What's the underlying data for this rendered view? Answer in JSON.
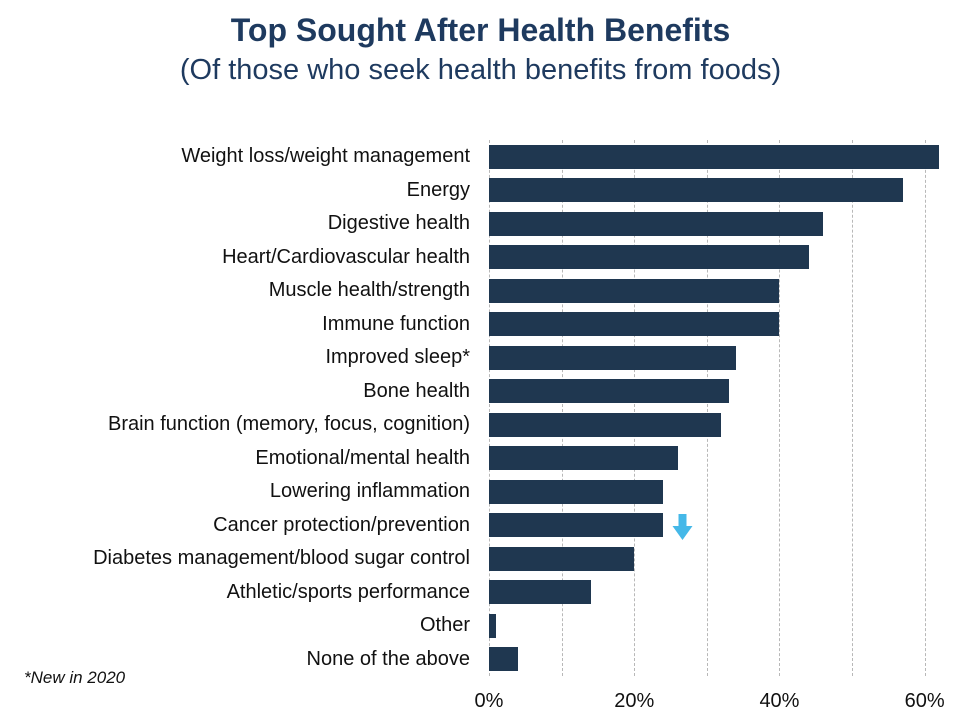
{
  "title": "Top Sought After Health Benefits",
  "subtitle": "(Of those who seek health benefits from foods)",
  "footnote": "*New in 2020",
  "colors": {
    "bar": "#1f3750",
    "heading": "#1e3a5f",
    "arrow": "#45b8e8",
    "gridline": "#b8b8b8",
    "text": "#111111"
  },
  "chart_data": {
    "type": "bar",
    "orientation": "horizontal",
    "title": "Top Sought After Health Benefits",
    "subtitle": "(Of those who seek health benefits from foods)",
    "categories": [
      "Weight loss/weight management",
      "Energy",
      "Digestive health",
      "Heart/Cardiovascular health",
      "Muscle health/strength",
      "Immune function",
      "Improved sleep*",
      "Bone health",
      "Brain function (memory, focus, cognition)",
      "Emotional/mental health",
      "Lowering inflammation",
      "Cancer protection/prevention",
      "Diabetes management/blood sugar control",
      "Athletic/sports performance",
      "Other",
      "None of the above"
    ],
    "values": [
      62,
      57,
      46,
      44,
      40,
      40,
      34,
      33,
      32,
      26,
      24,
      24,
      20,
      14,
      1,
      4
    ],
    "unit": "%",
    "xlabel": "",
    "ylabel": "",
    "xlim": [
      0,
      65
    ],
    "x_tick_labels": [
      "0%",
      "20%",
      "40%",
      "60%"
    ],
    "x_tick_values": [
      0,
      20,
      40,
      60
    ],
    "gridline_values": [
      0,
      10,
      20,
      30,
      40,
      50,
      60
    ],
    "grid": "vertical dashed gray lines every 10%",
    "legend": "none",
    "annotations": [
      {
        "type": "down-arrow",
        "category": "Cancer protection/prevention",
        "meaning": "decrease vs prior year indicator",
        "color": "#45b8e8"
      }
    ]
  }
}
